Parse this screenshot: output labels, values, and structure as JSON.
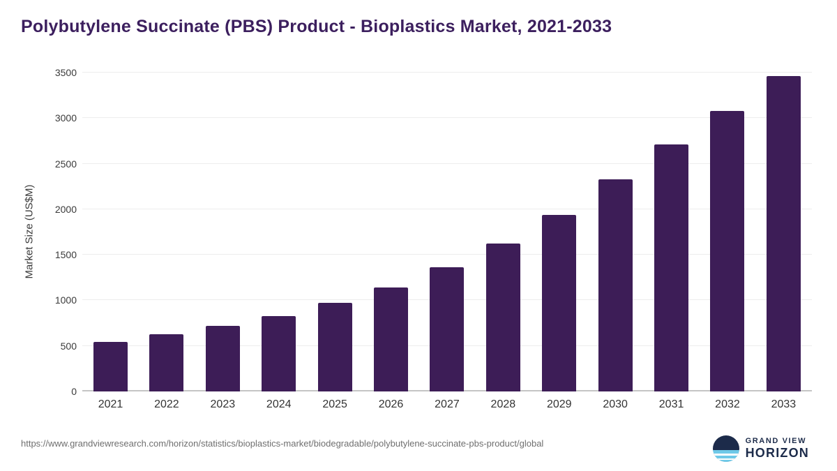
{
  "page_title": "Polybutylene Succinate (PBS) Product - Bioplastics Market, 2021-2033",
  "chart_data": {
    "type": "bar",
    "title": "Polybutylene Succinate (PBS) Product - Bioplastics Market, 2021-2033",
    "categories": [
      "2021",
      "2022",
      "2023",
      "2024",
      "2025",
      "2026",
      "2027",
      "2028",
      "2029",
      "2030",
      "2031",
      "2032",
      "2033"
    ],
    "values": [
      545,
      625,
      720,
      830,
      975,
      1145,
      1360,
      1620,
      1940,
      2330,
      2710,
      3080,
      3460
    ],
    "xlabel": "",
    "ylabel": "Market Size (US$M)",
    "ylim": [
      0,
      3500
    ],
    "yticks": [
      0,
      500,
      1000,
      1500,
      2000,
      2500,
      3000,
      3500
    ],
    "grid": true,
    "legend_position": "none",
    "bar_color": "#3d1d57"
  },
  "footer": {
    "source_url": "https://www.grandviewresearch.com/horizon/statistics/bioplastics-market/biodegradable/polybutylene-succinate-pbs-product/global",
    "logo_line1": "GRAND VIEW",
    "logo_line2": "HORIZON"
  },
  "colors": {
    "title_text": "#3c1f5e",
    "bar": "#3d1d57",
    "axis_text": "#3a3a3a",
    "source_text": "#6f6f6f",
    "logo_navy": "#1c2b4a",
    "logo_blue": "#6fc9e8"
  }
}
